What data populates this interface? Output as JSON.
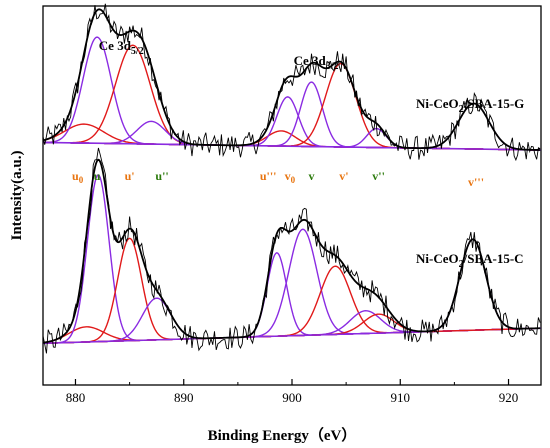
{
  "chart_data": {
    "type": "line",
    "xlabel": "Binding Energy（eV）",
    "ylabel": "Intensity(a.u.)",
    "xlim": [
      877,
      923
    ],
    "x_ticks": [
      880,
      890,
      900,
      910,
      920
    ],
    "x_reversed": false,
    "y_ticks_shown": false,
    "grid": false,
    "colors": {
      "raw": "#000000",
      "envelope": "#000000",
      "u_component": "#e11a1a",
      "v_component": "#8a2be2",
      "label_orange": "#e8740f",
      "label_green": "#2b7a0b",
      "baseline": "#7a3cc8"
    },
    "annotations": [
      {
        "id": "ce3d52",
        "text": "Ce 3d",
        "sub": "5/2",
        "x": 884.0
      },
      {
        "id": "ce3d32",
        "text": "Ce 3d",
        "sub": "3/2",
        "x": 902.0
      }
    ],
    "sample_labels": [
      {
        "base": "Ni-CeO",
        "sub": "2",
        "rest": "/SBA-15-G"
      },
      {
        "base": "Ni-CeO",
        "sub": "2",
        "rest": "/SBA-15-C"
      }
    ],
    "peak_labels": [
      {
        "base": "u",
        "sub": "0",
        "prime": "",
        "x": 880.2,
        "color": "#e8740f"
      },
      {
        "base": "u",
        "sub": "",
        "prime": "",
        "x": 882.0,
        "color": "#2b7a0b"
      },
      {
        "base": "u",
        "sub": "",
        "prime": "'",
        "x": 885.0,
        "color": "#e8740f"
      },
      {
        "base": "u",
        "sub": "",
        "prime": "''",
        "x": 888.0,
        "color": "#2b7a0b"
      },
      {
        "base": "u",
        "sub": "",
        "prime": "'''",
        "x": 897.8,
        "color": "#e8740f"
      },
      {
        "base": "v",
        "sub": "0",
        "prime": "",
        "x": 899.8,
        "color": "#e8740f"
      },
      {
        "base": "v",
        "sub": "",
        "prime": "",
        "x": 901.8,
        "color": "#2b7a0b"
      },
      {
        "base": "v",
        "sub": "",
        "prime": "'",
        "x": 904.8,
        "color": "#e8740f"
      },
      {
        "base": "v",
        "sub": "",
        "prime": "''",
        "x": 908.0,
        "color": "#2b7a0b"
      },
      {
        "base": "v",
        "sub": "",
        "prime": "'''",
        "x": 917.0,
        "color": "#e8740f"
      }
    ],
    "series": [
      {
        "name": "Ni-CeO2/SBA-15-G",
        "offset": 0.62,
        "baseline": [
          0.02,
          0.0
        ],
        "components": [
          {
            "center": 880.8,
            "height": 0.05,
            "width": 1.8,
            "color": "u"
          },
          {
            "center": 882.0,
            "height": 0.28,
            "width": 1.3,
            "color": "v"
          },
          {
            "center": 885.3,
            "height": 0.26,
            "width": 1.6,
            "color": "u"
          },
          {
            "center": 887.0,
            "height": 0.06,
            "width": 1.3,
            "color": "v"
          },
          {
            "center": 899.0,
            "height": 0.04,
            "width": 1.3,
            "color": "u"
          },
          {
            "center": 899.6,
            "height": 0.13,
            "width": 1.0,
            "color": "v"
          },
          {
            "center": 901.8,
            "height": 0.17,
            "width": 1.0,
            "color": "v"
          },
          {
            "center": 904.5,
            "height": 0.22,
            "width": 1.4,
            "color": "u"
          },
          {
            "center": 907.8,
            "height": 0.05,
            "width": 0.9,
            "color": "v"
          },
          {
            "center": 916.8,
            "height": 0.12,
            "width": 1.4,
            "color": "v"
          }
        ]
      },
      {
        "name": "Ni-CeO2/SBA-15-C",
        "offset": 0.11,
        "baseline": [
          0.0,
          0.04
        ],
        "components": [
          {
            "center": 881.0,
            "height": 0.04,
            "width": 1.6,
            "color": "u"
          },
          {
            "center": 882.1,
            "height": 0.44,
            "width": 1.0,
            "color": "v"
          },
          {
            "center": 885.0,
            "height": 0.27,
            "width": 1.1,
            "color": "u"
          },
          {
            "center": 887.5,
            "height": 0.11,
            "width": 1.3,
            "color": "v"
          },
          {
            "center": 898.6,
            "height": 0.22,
            "width": 0.9,
            "color": "v"
          },
          {
            "center": 901.0,
            "height": 0.28,
            "width": 1.3,
            "color": "v"
          },
          {
            "center": 904.0,
            "height": 0.18,
            "width": 1.4,
            "color": "u"
          },
          {
            "center": 906.8,
            "height": 0.06,
            "width": 1.4,
            "color": "v"
          },
          {
            "center": 908.0,
            "height": 0.05,
            "width": 1.4,
            "color": "u"
          },
          {
            "center": 916.7,
            "height": 0.24,
            "width": 1.2,
            "color": "v"
          }
        ]
      }
    ]
  }
}
